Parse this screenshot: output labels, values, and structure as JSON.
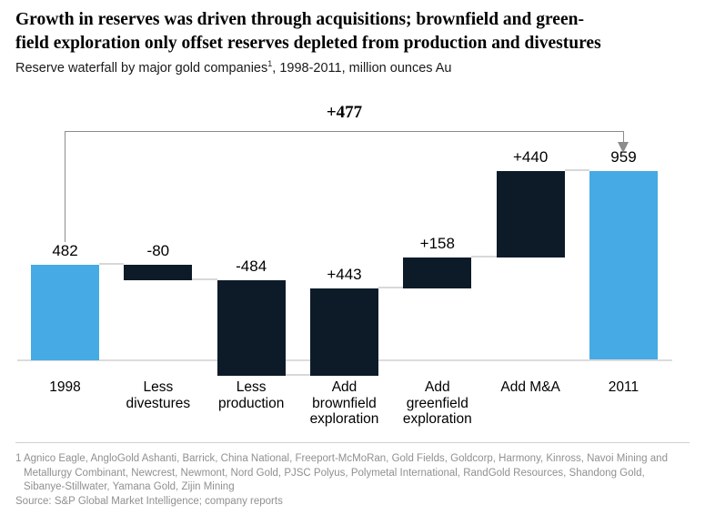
{
  "header": {
    "title_line1": "Growth in reserves was driven through acquisitions; brownfield and green-",
    "title_line2": "field exploration only offset reserves depleted from production and divestures",
    "subtitle_prefix": "Reserve waterfall by major gold companies",
    "subtitle_superscript": "1",
    "subtitle_suffix": ", 1998-2011, million ounces Au"
  },
  "chart_data": {
    "type": "waterfall",
    "title": "Reserve waterfall by major gold companies, 1998-2011, million ounces Au",
    "unit": "million ounces Au",
    "categories": [
      "1998",
      "Less divestures",
      "Less production",
      "Add brownfield exploration",
      "Add greenfield exploration",
      "Add M&A",
      "2011"
    ],
    "category_lines": [
      [
        "1998"
      ],
      [
        "Less",
        "divestures"
      ],
      [
        "Less",
        "production"
      ],
      [
        "Add",
        "brownfield",
        "exploration"
      ],
      [
        "Add",
        "greenfield",
        "exploration"
      ],
      [
        "Add M&A"
      ],
      [
        "2011"
      ]
    ],
    "values": [
      482,
      -80,
      -484,
      443,
      158,
      440,
      959
    ],
    "bar_kinds": [
      "total",
      "delta",
      "delta",
      "delta",
      "delta",
      "delta",
      "total"
    ],
    "value_labels": [
      "482",
      "-80",
      "-484",
      "+443",
      "+158",
      "+440",
      "959"
    ],
    "running_totals": [
      482,
      402,
      -82,
      361,
      519,
      959
    ],
    "annotation": {
      "label": "+477",
      "from_category": "1998",
      "to_category": "2011"
    },
    "ylim": [
      -100,
      1000
    ],
    "grid": false,
    "legend": false,
    "colors": {
      "total_bar": "#46aae4",
      "delta_bar": "#0d1b29",
      "connector": "#d8d8d8",
      "axis_line": "#dcdcdc",
      "bracket": "#8c8c8c",
      "footnote_text": "#909090"
    }
  },
  "footnote": {
    "lines": [
      "1 Agnico Eagle, AngloGold Ashanti, Barrick, China National, Freeport-McMoRan, Gold Fields, Goldcorp, Harmony, Kinross, Navoi Mining and",
      "Metallurgy Combinant, Newcrest, Newmont, Nord Gold, PJSC Polyus, Polymetal International, RandGold Resources, Shandong Gold,",
      "Sibanye-Stillwater, Yamana Gold, Zijin Mining"
    ],
    "source": "Source: S&P Global Market Intelligence; company reports"
  }
}
